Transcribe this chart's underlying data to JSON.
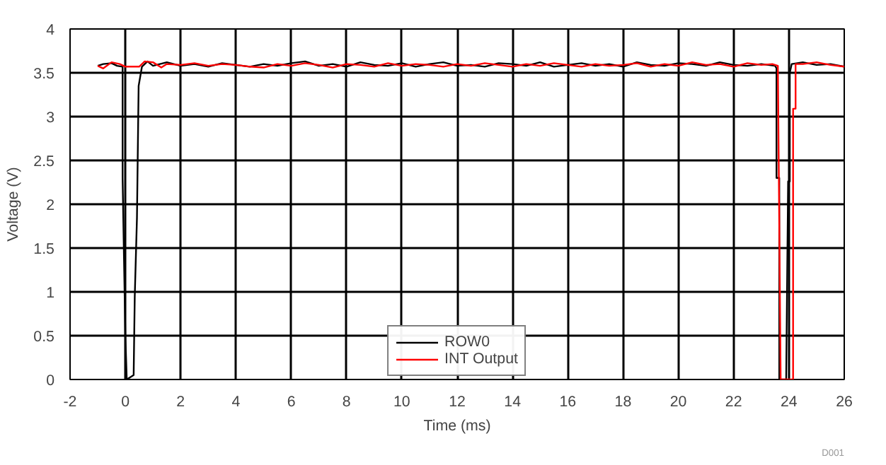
{
  "chart_data": {
    "type": "line",
    "xlabel": "Time (ms)",
    "ylabel": "Voltage (V)",
    "xlim": [
      -2,
      26
    ],
    "xticks": [
      -2,
      0,
      2,
      4,
      6,
      8,
      10,
      12,
      14,
      16,
      18,
      20,
      22,
      24,
      26
    ],
    "ylim": [
      0,
      4
    ],
    "yticks": [
      0,
      0.5,
      1,
      1.5,
      2,
      2.5,
      3,
      3.5,
      4
    ],
    "grid": true,
    "legend": "bottom",
    "marker": "none",
    "line_style": "solid",
    "annotations": [
      "D001"
    ],
    "series": [
      {
        "name": "ROW0",
        "color": "#000000",
        "x": [
          -1,
          -0.8,
          -0.5,
          -0.3,
          -0.1,
          -0.1,
          -0.05,
          0,
          0.05,
          0.3,
          0.34,
          0.42,
          0.48,
          0.6,
          0.8,
          1,
          1.5,
          2,
          2.5,
          3,
          3.5,
          4,
          4.5,
          5,
          5.5,
          6,
          6.5,
          7,
          7.5,
          8,
          8.5,
          9,
          9.5,
          10,
          10.5,
          11,
          11.5,
          12,
          12.5,
          13,
          13.5,
          14,
          14.5,
          15,
          15.5,
          16,
          16.5,
          17,
          17.5,
          18,
          18.5,
          19,
          19.5,
          20,
          20.5,
          21,
          21.5,
          22,
          22.5,
          23,
          23.5,
          23.55,
          23.55,
          23.65,
          23.65,
          23.9,
          23.97,
          24.03,
          24.03,
          24.1,
          24.5,
          25,
          25.5,
          26
        ],
        "values": [
          3.58,
          3.6,
          3.61,
          3.58,
          3.57,
          2.3,
          1.4,
          0.5,
          0,
          0.05,
          0.95,
          1.85,
          3.35,
          3.57,
          3.63,
          3.58,
          3.62,
          3.58,
          3.6,
          3.57,
          3.61,
          3.59,
          3.57,
          3.6,
          3.58,
          3.61,
          3.63,
          3.58,
          3.6,
          3.57,
          3.62,
          3.59,
          3.58,
          3.61,
          3.57,
          3.6,
          3.62,
          3.58,
          3.59,
          3.57,
          3.61,
          3.6,
          3.58,
          3.62,
          3.57,
          3.59,
          3.61,
          3.58,
          3.6,
          3.57,
          3.62,
          3.59,
          3.58,
          3.61,
          3.6,
          3.58,
          3.62,
          3.59,
          3.58,
          3.6,
          3.58,
          3.55,
          2.3,
          2.3,
          0,
          0,
          2.26,
          2.26,
          3.5,
          3.6,
          3.62,
          3.59,
          3.6,
          3.57
        ]
      },
      {
        "name": "INT Output",
        "color": "#ff0000",
        "x": [
          -1,
          -0.8,
          -0.5,
          -0.2,
          0,
          0.5,
          0.7,
          1,
          1.3,
          1.5,
          2,
          2.5,
          3,
          3.5,
          4,
          4.5,
          5,
          5.5,
          6,
          6.5,
          7,
          7.5,
          8,
          8.5,
          9,
          9.5,
          10,
          10.5,
          11,
          11.5,
          12,
          12.5,
          13,
          13.5,
          14,
          14.5,
          15,
          15.5,
          16,
          16.5,
          17,
          17.5,
          18,
          18.5,
          19,
          19.5,
          20,
          20.5,
          21,
          21.5,
          22,
          22.5,
          23,
          23.4,
          23.6,
          23.6,
          23.7,
          24.15,
          24.15,
          24.24,
          24.24,
          24.5,
          25,
          25.5,
          26
        ],
        "values": [
          3.58,
          3.55,
          3.62,
          3.6,
          3.57,
          3.57,
          3.63,
          3.62,
          3.56,
          3.6,
          3.59,
          3.61,
          3.58,
          3.6,
          3.59,
          3.57,
          3.56,
          3.6,
          3.58,
          3.61,
          3.59,
          3.56,
          3.6,
          3.59,
          3.57,
          3.61,
          3.58,
          3.6,
          3.59,
          3.57,
          3.6,
          3.58,
          3.61,
          3.59,
          3.57,
          3.6,
          3.58,
          3.61,
          3.59,
          3.57,
          3.6,
          3.58,
          3.59,
          3.61,
          3.57,
          3.6,
          3.58,
          3.62,
          3.59,
          3.6,
          3.57,
          3.61,
          3.59,
          3.6,
          3.58,
          3.55,
          0,
          0,
          3.09,
          3.09,
          3.6,
          3.6,
          3.62,
          3.59,
          3.57
        ]
      }
    ]
  }
}
